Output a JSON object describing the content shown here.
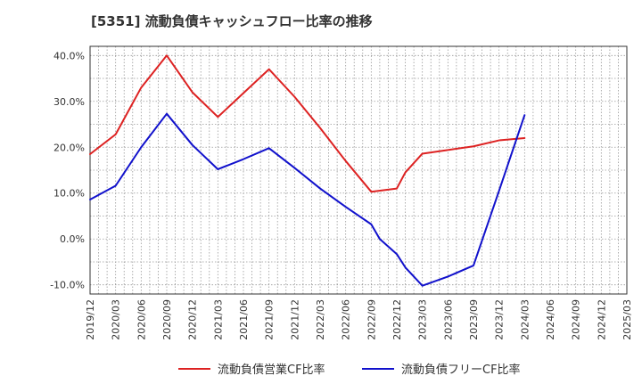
{
  "title": "[5351]  流動負債キャッシュフロー比率の推移",
  "chart_data": {
    "type": "line",
    "title": "[5351]  流動負債キャッシュフロー比率の推移",
    "xlabel": "",
    "ylabel": "",
    "x_ticks": [
      "2019/12",
      "2020/03",
      "2020/06",
      "2020/09",
      "2020/12",
      "2021/03",
      "2021/06",
      "2021/09",
      "2021/12",
      "2022/03",
      "2022/06",
      "2022/09",
      "2022/12",
      "2023/03",
      "2023/06",
      "2023/09",
      "2023/12",
      "2024/03",
      "2024/06",
      "2024/09",
      "2024/12",
      "2025/03"
    ],
    "y_ticks": [
      "40.0%",
      "30.0%",
      "20.0%",
      "10.0%",
      "0.0%",
      "-10.0%"
    ],
    "y_tick_values": [
      40,
      30,
      20,
      10,
      0,
      -10
    ],
    "ylim": [
      -12,
      42
    ],
    "grid": true,
    "legend_position": "bottom",
    "series": [
      {
        "name": "流動負債営業CF比率",
        "color": "#dd2222",
        "points": [
          [
            "2019/12",
            18.5
          ],
          [
            "2020/03",
            22.8
          ],
          [
            "2020/06",
            33.0
          ],
          [
            "2020/09",
            40.0
          ],
          [
            "2020/12",
            32.0
          ],
          [
            "2021/03",
            26.6
          ],
          [
            "2021/06",
            31.8
          ],
          [
            "2021/09",
            37.0
          ],
          [
            "2021/12",
            31.0
          ],
          [
            "2022/03",
            24.2
          ],
          [
            "2022/06",
            17.0
          ],
          [
            "2022/09",
            10.3
          ],
          [
            "2022/12",
            11.0
          ],
          [
            "2023/01",
            14.5
          ],
          [
            "2023/03",
            18.6
          ],
          [
            "2023/06",
            19.4
          ],
          [
            "2023/09",
            20.2
          ],
          [
            "2023/12",
            21.5
          ],
          [
            "2024/03",
            22.0
          ]
        ]
      },
      {
        "name": "流動負債フリーCF比率",
        "color": "#1111cc",
        "points": [
          [
            "2019/12",
            8.6
          ],
          [
            "2020/03",
            11.6
          ],
          [
            "2020/06",
            20.0
          ],
          [
            "2020/09",
            27.3
          ],
          [
            "2020/12",
            20.5
          ],
          [
            "2021/03",
            15.2
          ],
          [
            "2021/06",
            17.4
          ],
          [
            "2021/09",
            19.8
          ],
          [
            "2021/12",
            15.5
          ],
          [
            "2022/03",
            11.0
          ],
          [
            "2022/06",
            7.0
          ],
          [
            "2022/09",
            3.2
          ],
          [
            "2022/10",
            0.0
          ],
          [
            "2022/12",
            -3.3
          ],
          [
            "2023/01",
            -6.2
          ],
          [
            "2023/03",
            -10.2
          ],
          [
            "2023/06",
            -8.2
          ],
          [
            "2023/09",
            -5.8
          ],
          [
            "2023/12",
            10.5
          ],
          [
            "2024/03",
            27.0
          ]
        ]
      }
    ]
  }
}
